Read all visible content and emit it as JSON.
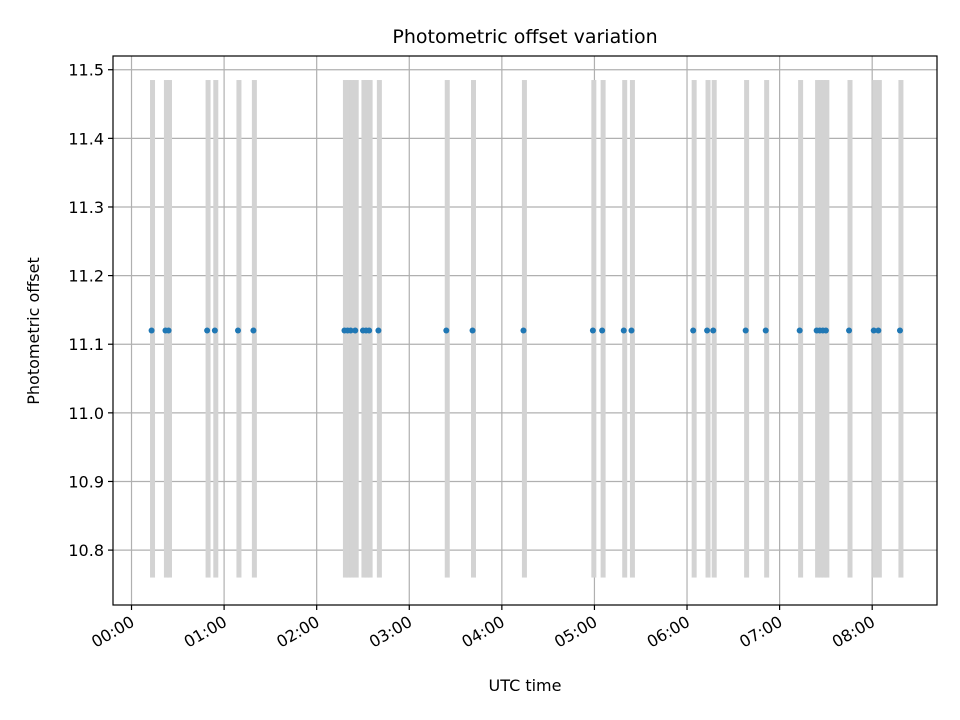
{
  "chart_data": {
    "type": "scatter",
    "title": "Photometric offset variation",
    "xlabel": "UTC time",
    "ylabel": "Photometric offset",
    "x_unit": "hours",
    "xlim": [
      "-00:12",
      "08:42"
    ],
    "ylim": [
      10.72,
      11.52
    ],
    "x_ticks": [
      "00:00",
      "01:00",
      "02:00",
      "03:00",
      "04:00",
      "05:00",
      "06:00",
      "07:00",
      "08:00"
    ],
    "y_ticks": [
      "10.8",
      "10.9",
      "11.0",
      "11.1",
      "11.2",
      "11.3",
      "11.4",
      "11.5"
    ],
    "grid": true,
    "band_range": [
      10.76,
      11.485
    ],
    "marker_color": "#1f77b4",
    "band_color": "#d3d3d3",
    "y_value": 11.12,
    "x": [
      "00:13",
      "00:22",
      "00:24",
      "00:49",
      "00:54",
      "01:09",
      "01:19",
      "02:18",
      "02:20",
      "02:22",
      "02:25",
      "02:30",
      "02:32",
      "02:34",
      "02:40",
      "03:24",
      "03:41",
      "04:14",
      "04:59",
      "05:05",
      "05:19",
      "05:24",
      "06:04",
      "06:13",
      "06:17",
      "06:38",
      "06:51",
      "07:13",
      "07:24",
      "07:26",
      "07:28",
      "07:30",
      "07:45",
      "08:01",
      "08:04",
      "08:18"
    ],
    "band_widths_min": [
      2,
      2,
      2,
      2,
      2,
      2,
      2,
      2,
      2,
      2,
      2,
      2,
      2,
      2,
      2,
      2,
      2,
      2,
      2,
      2,
      2,
      2,
      2,
      2,
      2,
      2,
      2,
      2,
      2,
      2,
      2,
      2,
      2,
      2,
      2,
      2
    ]
  }
}
